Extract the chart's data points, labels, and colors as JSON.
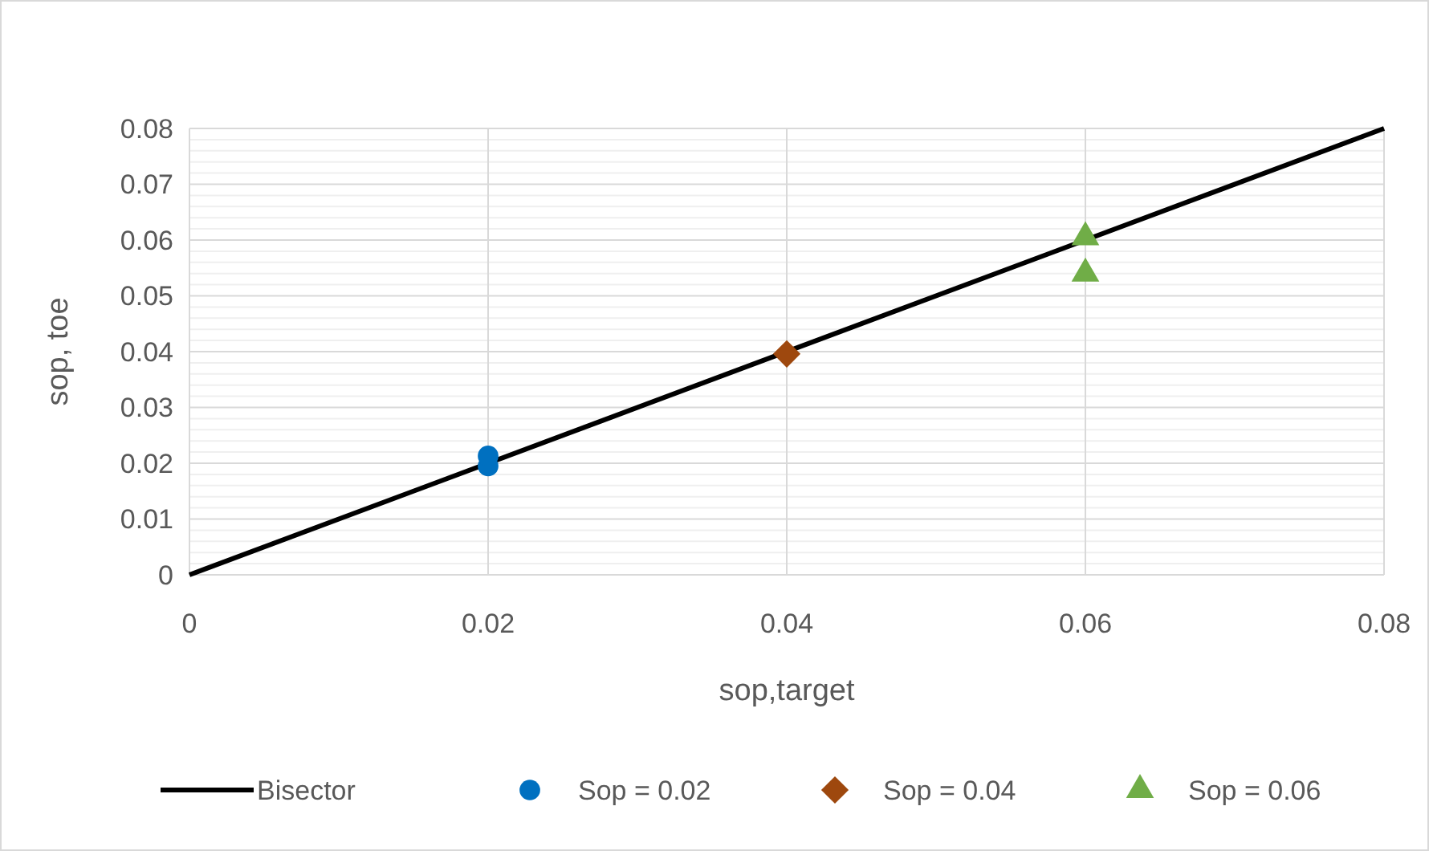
{
  "chart_data": {
    "type": "scatter",
    "xlabel": "sop,target",
    "ylabel": "sop, toe",
    "xlim": [
      0,
      0.08
    ],
    "ylim": [
      0,
      0.08
    ],
    "xticks": [
      {
        "value": 0,
        "label": "0"
      },
      {
        "value": 0.02,
        "label": "0.02"
      },
      {
        "value": 0.04,
        "label": "0.04"
      },
      {
        "value": 0.06,
        "label": "0.06"
      },
      {
        "value": 0.08,
        "label": "0.08"
      }
    ],
    "yticks": [
      {
        "value": 0,
        "label": "0"
      },
      {
        "value": 0.01,
        "label": "0.01"
      },
      {
        "value": 0.02,
        "label": "0.02"
      },
      {
        "value": 0.03,
        "label": "0.03"
      },
      {
        "value": 0.04,
        "label": "0.04"
      },
      {
        "value": 0.05,
        "label": "0.05"
      },
      {
        "value": 0.06,
        "label": "0.06"
      },
      {
        "value": 0.07,
        "label": "0.07"
      },
      {
        "value": 0.08,
        "label": "0.08"
      }
    ],
    "grid": true,
    "legend": "bottom",
    "series": [
      {
        "name": "Bisector",
        "type": "line",
        "color": "#000000",
        "x": [
          0,
          0.08
        ],
        "values": [
          0,
          0.08
        ],
        "marker": "none"
      },
      {
        "name": "Sop = 0.02",
        "color": "#0070c0",
        "marker": "circle",
        "x": [
          0.02,
          0.02
        ],
        "values": [
          0.0195,
          0.0213
        ]
      },
      {
        "name": "Sop = 0.04",
        "color": "#9e480e",
        "marker": "diamond",
        "x": [
          0.04
        ],
        "values": [
          0.0396
        ]
      },
      {
        "name": "Sop = 0.06",
        "color": "#70ad47",
        "marker": "triangle",
        "x": [
          0.06,
          0.06
        ],
        "values": [
          0.0605,
          0.054
        ]
      }
    ]
  }
}
